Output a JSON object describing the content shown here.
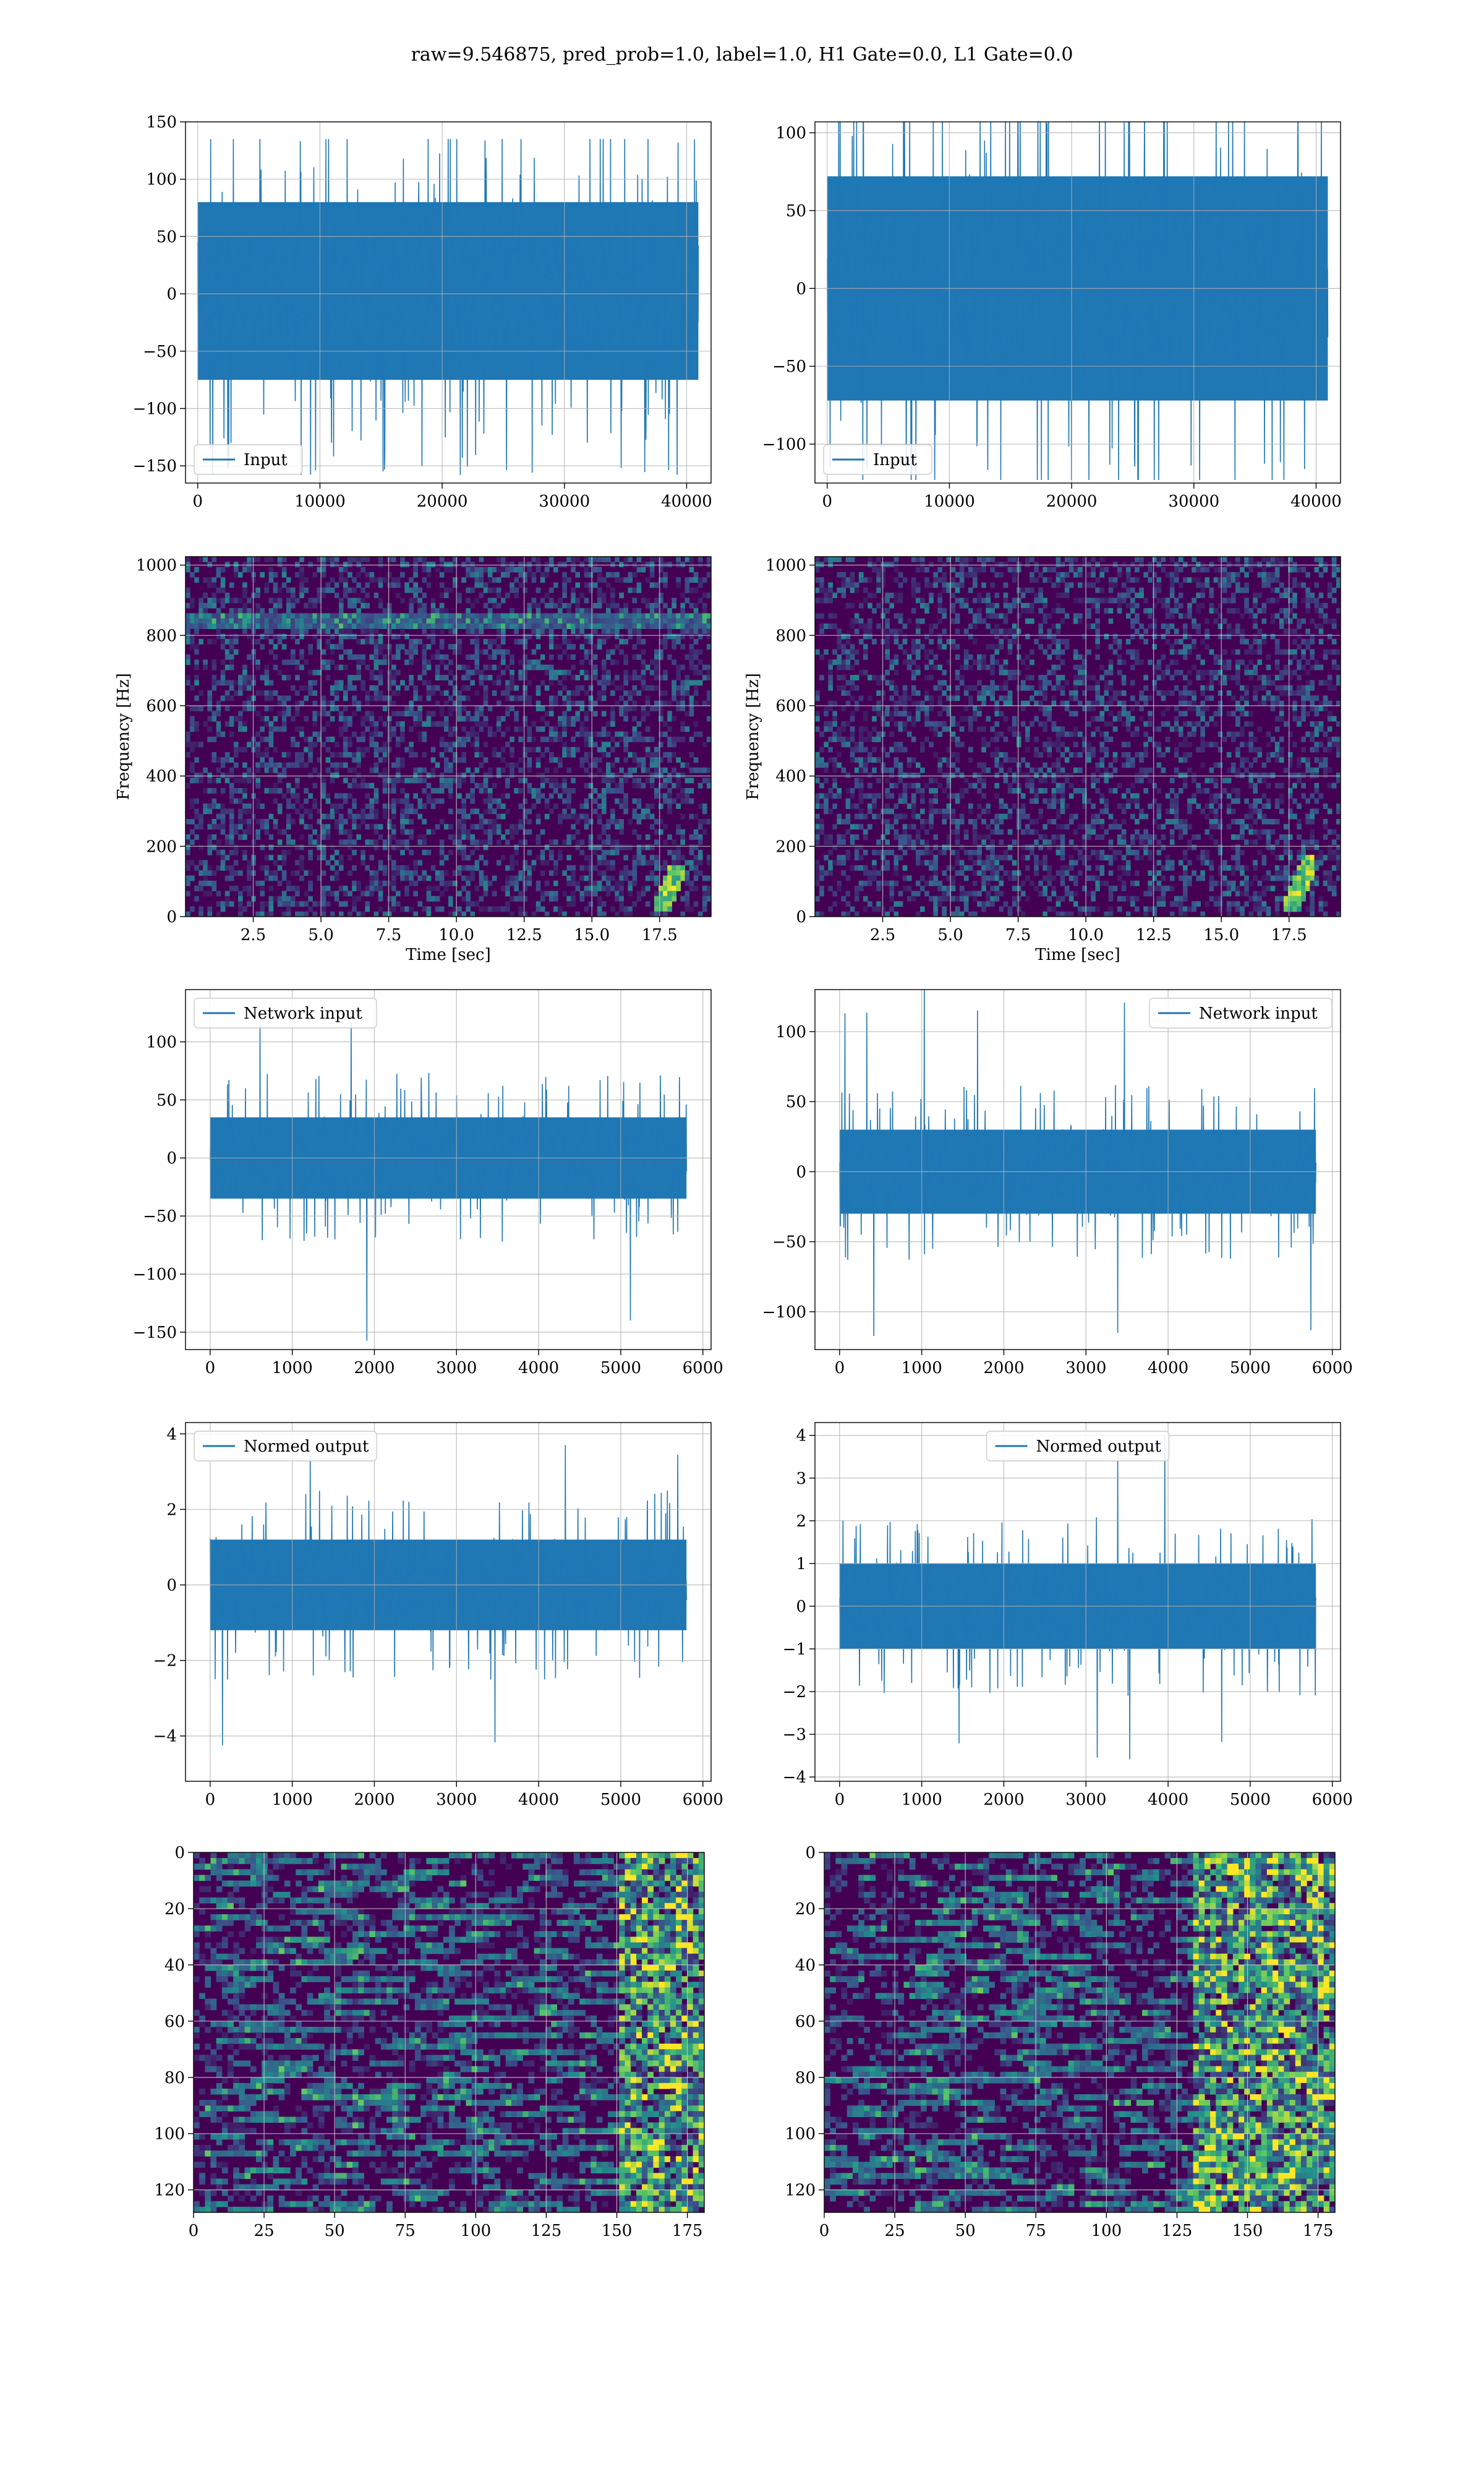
{
  "figure": {
    "suptitle": "raw=9.546875, pred_prob=1.0, label=1.0, H1 Gate=0.0, L1 Gate=0.0"
  },
  "colors": {
    "trace": "#1f77b4",
    "grid": "#b0b0b0",
    "spec_bg": "#440154",
    "viridis": [
      "#440154",
      "#3b528b",
      "#21918c",
      "#5ec962",
      "#fde725"
    ]
  },
  "chart_data": [
    {
      "type": "line",
      "legend": "Input",
      "legend_loc": "lower left",
      "xlim": [
        -1000,
        42000
      ],
      "ylim": [
        -165,
        150
      ],
      "xticks": [
        0,
        10000,
        20000,
        30000,
        40000
      ],
      "yticks": [
        -150,
        -100,
        -50,
        0,
        50,
        100,
        150
      ],
      "x_range": [
        0,
        40960
      ],
      "band": [
        -75,
        80
      ],
      "spikes": [
        -158,
        135
      ],
      "xlabel": "",
      "ylabel": "",
      "grid": true
    },
    {
      "type": "line",
      "legend": "Input",
      "legend_loc": "lower left",
      "xlim": [
        -1000,
        42000
      ],
      "ylim": [
        -125,
        107
      ],
      "xticks": [
        0,
        10000,
        20000,
        30000,
        40000
      ],
      "yticks": [
        -100,
        -50,
        0,
        50,
        100
      ],
      "x_range": [
        0,
        40960
      ],
      "band": [
        -72,
        72
      ],
      "spikes": [
        -123,
        116
      ],
      "xlabel": "",
      "ylabel": "",
      "grid": true
    },
    {
      "type": "heatmap",
      "xlabel": "Time [sec]",
      "ylabel": "Frequency [Hz]",
      "xlim": [
        0,
        19.4
      ],
      "ylim": [
        0,
        1024
      ],
      "xticks": [
        2.5,
        5.0,
        7.5,
        10.0,
        12.5,
        15.0,
        17.5
      ],
      "xtick_labels": [
        "2.5",
        "5.0",
        "7.5",
        "10.0",
        "12.5",
        "15.0",
        "17.5"
      ],
      "yticks": [
        0,
        200,
        400,
        600,
        800,
        1000
      ],
      "features": [
        "horizontal line near 840 Hz",
        "chirp near t=18 s, 40-150 Hz"
      ],
      "grid": true
    },
    {
      "type": "heatmap",
      "xlabel": "Time [sec]",
      "ylabel": "Frequency [Hz]",
      "xlim": [
        0,
        19.4
      ],
      "ylim": [
        0,
        1024
      ],
      "xticks": [
        2.5,
        5.0,
        7.5,
        10.0,
        12.5,
        15.0,
        17.5
      ],
      "xtick_labels": [
        "2.5",
        "5.0",
        "7.5",
        "10.0",
        "12.5",
        "15.0",
        "17.5"
      ],
      "yticks": [
        0,
        200,
        400,
        600,
        800,
        1000
      ],
      "features": [
        "chirp near t=18 s, 40-180 Hz"
      ],
      "grid": true
    },
    {
      "type": "line",
      "legend": "Network input",
      "legend_loc": "upper left",
      "xlim": [
        -300,
        6100
      ],
      "ylim": [
        -165,
        145
      ],
      "xticks": [
        0,
        1000,
        2000,
        3000,
        4000,
        5000,
        6000
      ],
      "yticks": [
        -150,
        -100,
        -50,
        0,
        50,
        100
      ],
      "x_range": [
        0,
        5800
      ],
      "band": [
        -35,
        35
      ],
      "spikes": [
        -158,
        132
      ],
      "xlabel": "",
      "ylabel": "",
      "grid": true
    },
    {
      "type": "line",
      "legend": "Network input",
      "legend_loc": "upper right",
      "xlim": [
        -300,
        6100
      ],
      "ylim": [
        -127,
        130
      ],
      "xticks": [
        0,
        1000,
        2000,
        3000,
        4000,
        5000,
        6000
      ],
      "yticks": [
        -100,
        -50,
        0,
        50,
        100
      ],
      "x_range": [
        0,
        5800
      ],
      "band": [
        -30,
        30
      ],
      "spikes": [
        -123,
        132
      ],
      "xlabel": "",
      "ylabel": "",
      "grid": true
    },
    {
      "type": "line",
      "legend": "Normed output",
      "legend_loc": "upper left",
      "xlim": [
        -300,
        6100
      ],
      "ylim": [
        -5.2,
        4.3
      ],
      "xticks": [
        0,
        1000,
        2000,
        3000,
        4000,
        5000,
        6000
      ],
      "yticks": [
        -4,
        -2,
        0,
        2,
        4
      ],
      "x_range": [
        0,
        5800
      ],
      "band": [
        -1.2,
        1.2
      ],
      "spikes": [
        -4.8,
        4.0
      ],
      "xlabel": "",
      "ylabel": "",
      "grid": true
    },
    {
      "type": "line",
      "legend": "Normed output",
      "legend_loc": "upper center",
      "xlim": [
        -300,
        6100
      ],
      "ylim": [
        -4.1,
        4.3
      ],
      "xticks": [
        0,
        1000,
        2000,
        3000,
        4000,
        5000,
        6000
      ],
      "yticks": [
        -4,
        -3,
        -2,
        -1,
        0,
        1,
        2,
        3,
        4
      ],
      "x_range": [
        0,
        5800
      ],
      "band": [
        -1.0,
        1.0
      ],
      "spikes": [
        -3.6,
        4.0
      ],
      "xlabel": "",
      "ylabel": "",
      "grid": true
    },
    {
      "type": "heatmap",
      "xlim": [
        0,
        181
      ],
      "ylim": [
        128,
        0
      ],
      "y_inverted": true,
      "xticks": [
        0,
        25,
        50,
        75,
        100,
        125,
        150,
        175
      ],
      "yticks": [
        0,
        20,
        40,
        60,
        80,
        100,
        120
      ],
      "features": [
        "bright activations at columns 150-181"
      ],
      "xlabel": "",
      "ylabel": "",
      "grid": true
    },
    {
      "type": "heatmap",
      "xlim": [
        0,
        181
      ],
      "ylim": [
        128,
        0
      ],
      "y_inverted": true,
      "xticks": [
        0,
        25,
        50,
        75,
        100,
        125,
        150,
        175
      ],
      "yticks": [
        0,
        20,
        40,
        60,
        80,
        100,
        120
      ],
      "features": [
        "bright activations at columns 130-181"
      ],
      "xlabel": "",
      "ylabel": "",
      "grid": true
    }
  ]
}
